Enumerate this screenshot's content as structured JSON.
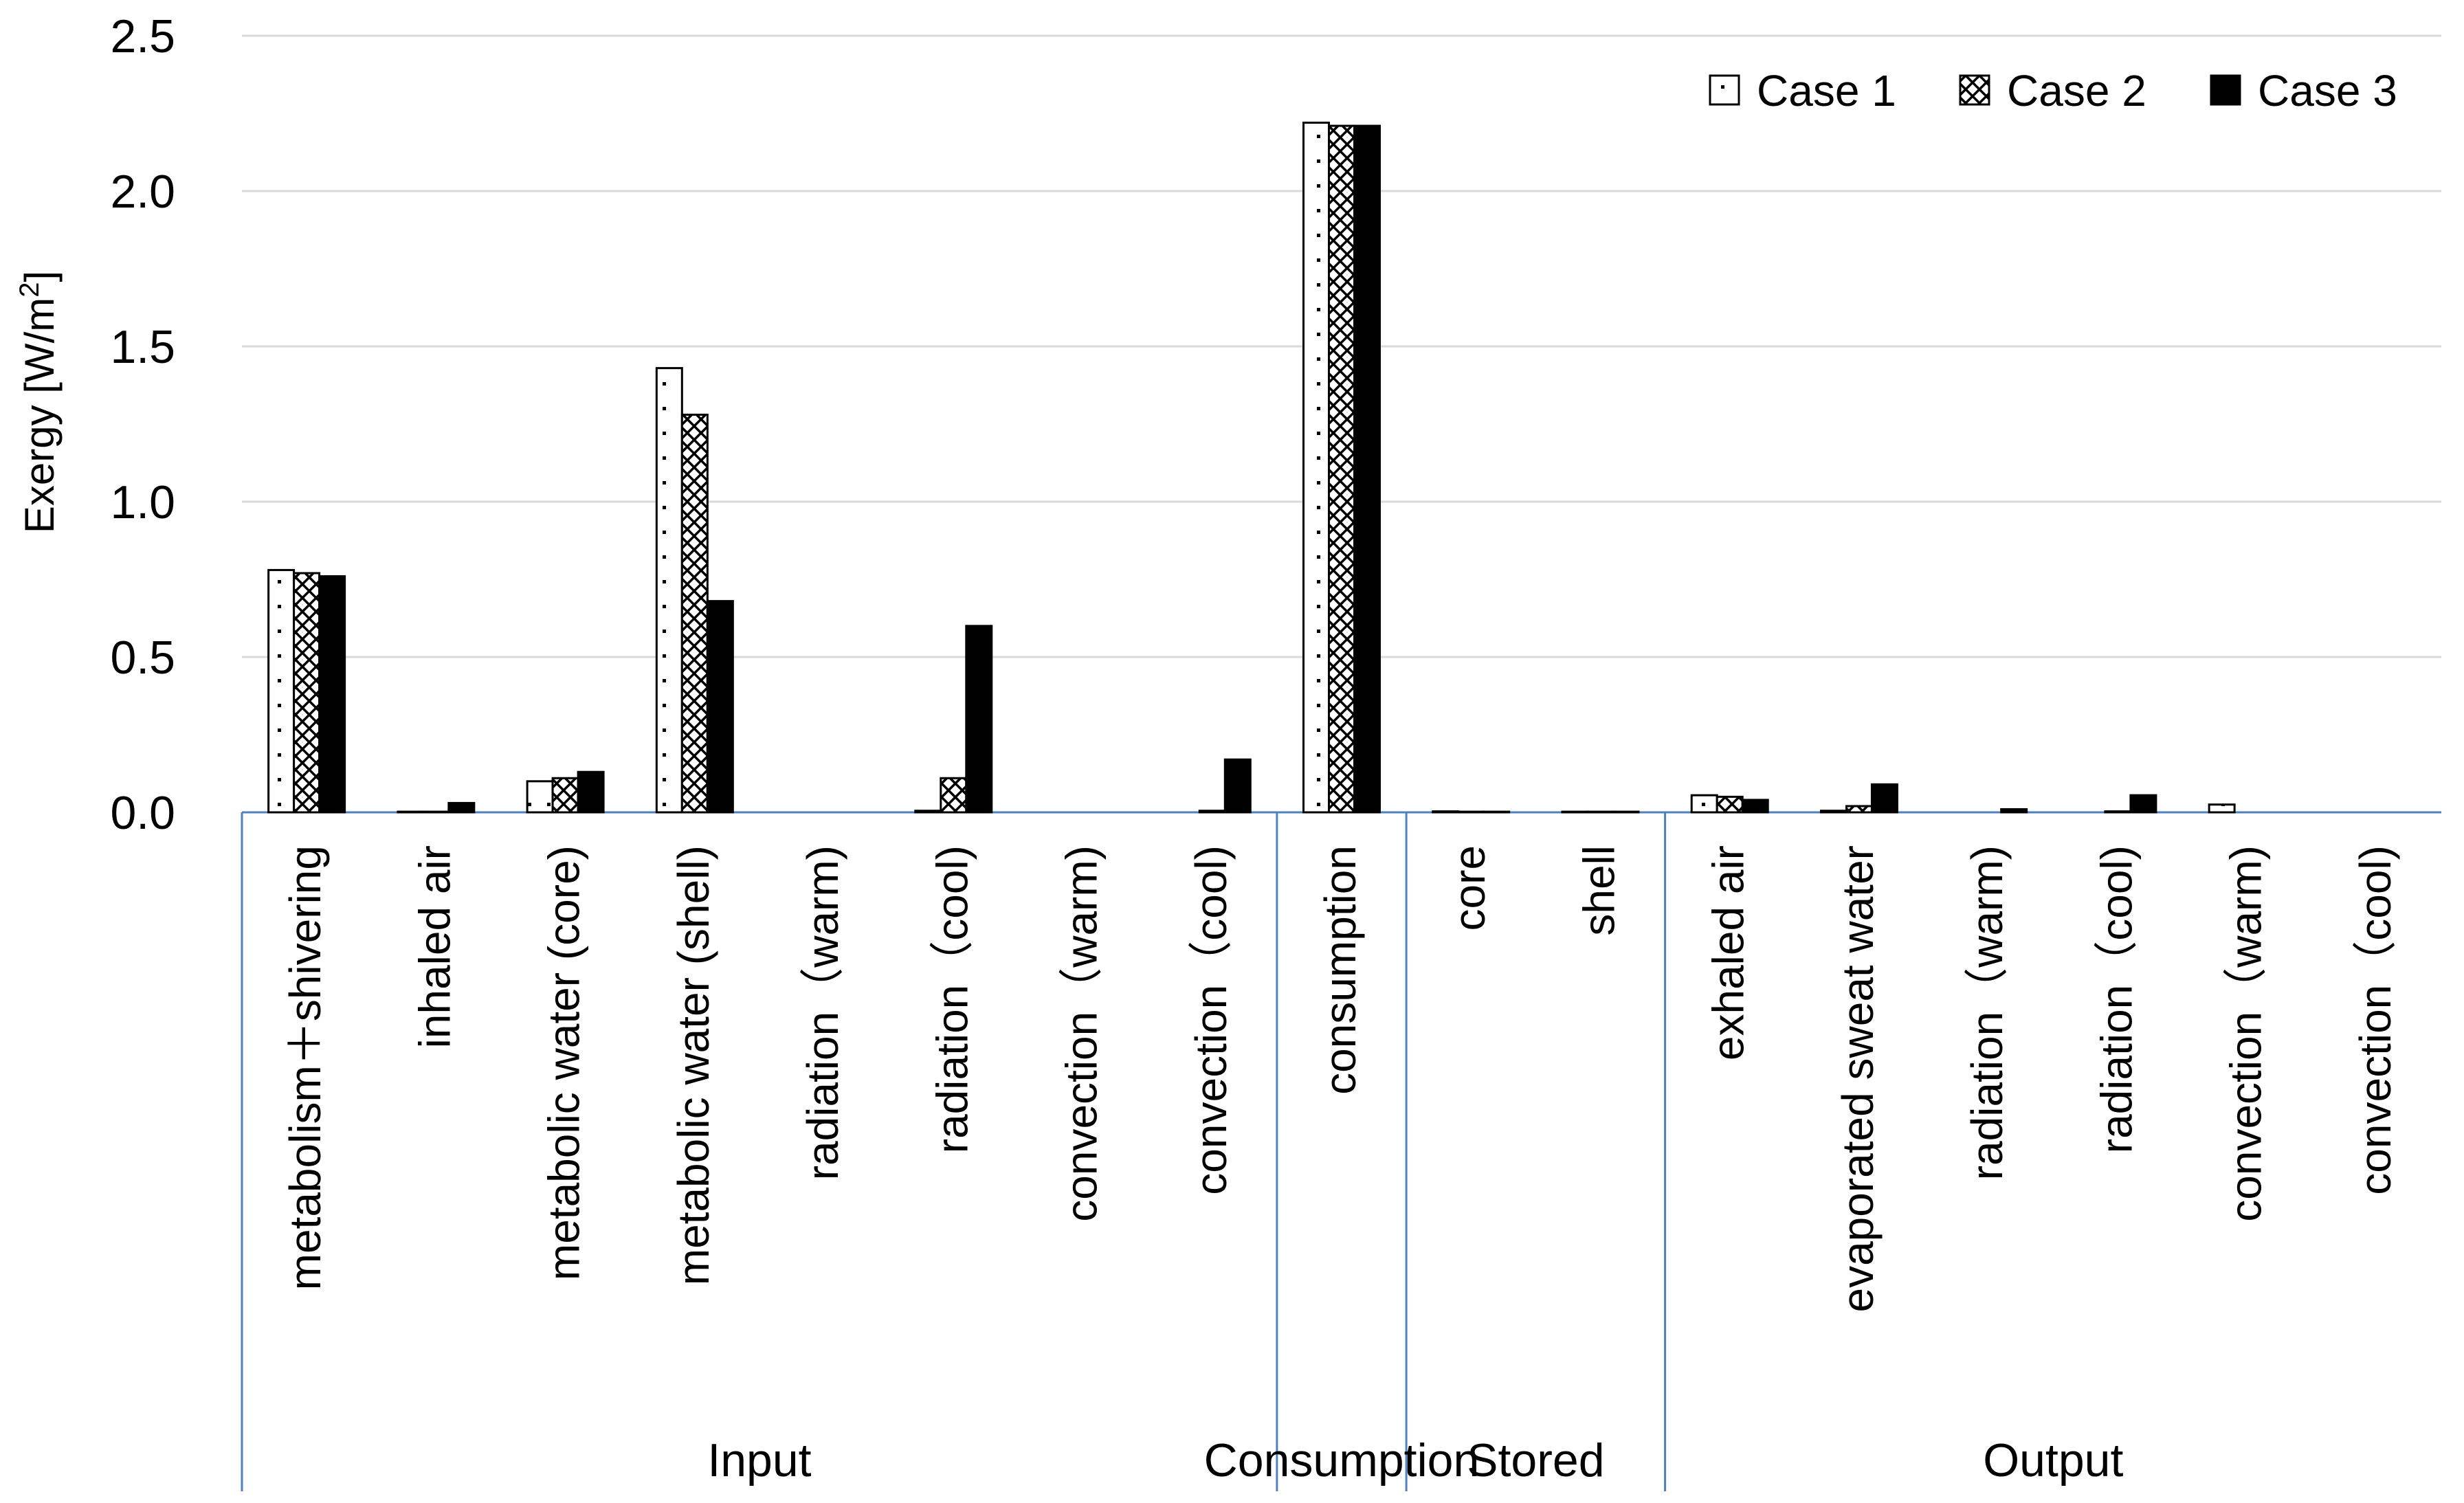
{
  "chart_data": {
    "type": "bar",
    "title": "",
    "xlabel": "",
    "ylabel": "Exergy [W/m²]",
    "ylabel_parts": {
      "text": "Exergy  [W/m",
      "sup": "2",
      "close": "]"
    },
    "ylim": [
      0,
      2.5
    ],
    "yticks": [
      "0.0",
      "0.5",
      "1.0",
      "1.5",
      "2.0",
      "2.5"
    ],
    "grid": true,
    "legend_position": "top-right",
    "groups": [
      {
        "name": "Input",
        "count": 8
      },
      {
        "name": "Consumption",
        "count": 1
      },
      {
        "name": "Stored",
        "count": 2
      },
      {
        "name": "Output",
        "count": 6
      }
    ],
    "categories": [
      "metabolism＋shivering",
      "inhaled air",
      "metabolic water (core)",
      "metabolic water (shell)",
      "radiation（warm)",
      "radiation（cool)",
      "convection（warm)",
      "convection（cool)",
      "consumption",
      "core",
      "shell",
      "exhaled air",
      "evaporated sweat water",
      "radiation（warm)",
      "radiation（cool)",
      "convection（warm)",
      "convection（cool)"
    ],
    "series": [
      {
        "name": "Case 1",
        "pattern": "dots",
        "values": [
          0.78,
          0.002,
          0.1,
          1.43,
          0,
          0.005,
          0,
          0,
          2.22,
          0.003,
          0.002,
          0.055,
          0.005,
          0,
          0,
          0.025,
          0
        ]
      },
      {
        "name": "Case 2",
        "pattern": "hatch",
        "values": [
          0.77,
          0.002,
          0.11,
          1.28,
          0,
          0.11,
          0,
          0.005,
          2.21,
          0.002,
          0.002,
          0.05,
          0.02,
          0,
          0.003,
          0,
          0
        ]
      },
      {
        "name": "Case 3",
        "pattern": "solid",
        "values": [
          0.76,
          0.03,
          0.13,
          0.68,
          0,
          0.6,
          0,
          0.17,
          2.21,
          0.002,
          0.002,
          0.04,
          0.09,
          0.01,
          0.055,
          0,
          0
        ]
      }
    ]
  }
}
